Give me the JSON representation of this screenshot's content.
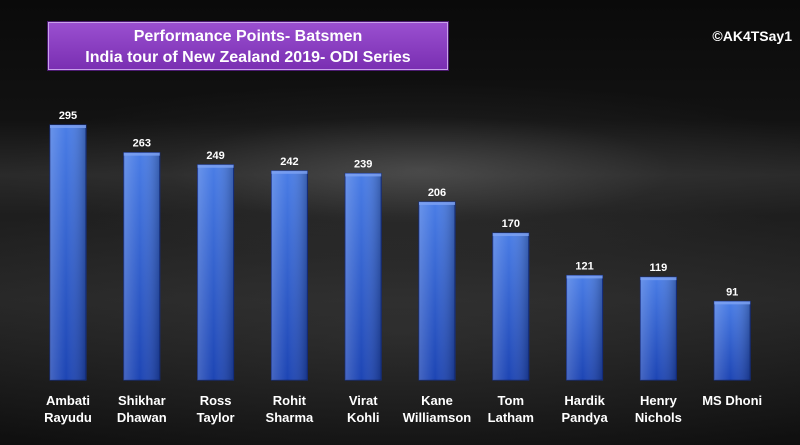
{
  "header": {
    "title_line1": "Performance  Points- Batsmen",
    "title_line2": "India tour of New Zealand 2019- ODI Series",
    "watermark": "©AK4TSay1"
  },
  "colors": {
    "bar_top": "#4a7de6",
    "bar_bottom": "#1d45b4",
    "title_bg": "#8a3fc4"
  },
  "chart_data": {
    "type": "bar",
    "title": "Performance  Points- Batsmen",
    "subtitle": "India tour of New Zealand 2019- ODI Series",
    "categories": [
      [
        "Ambati",
        "Rayudu"
      ],
      [
        "Shikhar",
        "Dhawan"
      ],
      [
        "Ross",
        "Taylor"
      ],
      [
        "Rohit",
        "Sharma"
      ],
      [
        "Virat",
        "Kohli"
      ],
      [
        "Kane",
        "Williamson"
      ],
      [
        "Tom",
        "Latham"
      ],
      [
        "Hardik",
        "Pandya"
      ],
      [
        "Henry",
        "Nichols"
      ],
      [
        "MS Dhoni"
      ]
    ],
    "values": [
      295,
      263,
      249,
      242,
      239,
      206,
      170,
      121,
      119,
      91
    ],
    "ylim": [
      0,
      300
    ],
    "grid": false,
    "legend": "none"
  }
}
